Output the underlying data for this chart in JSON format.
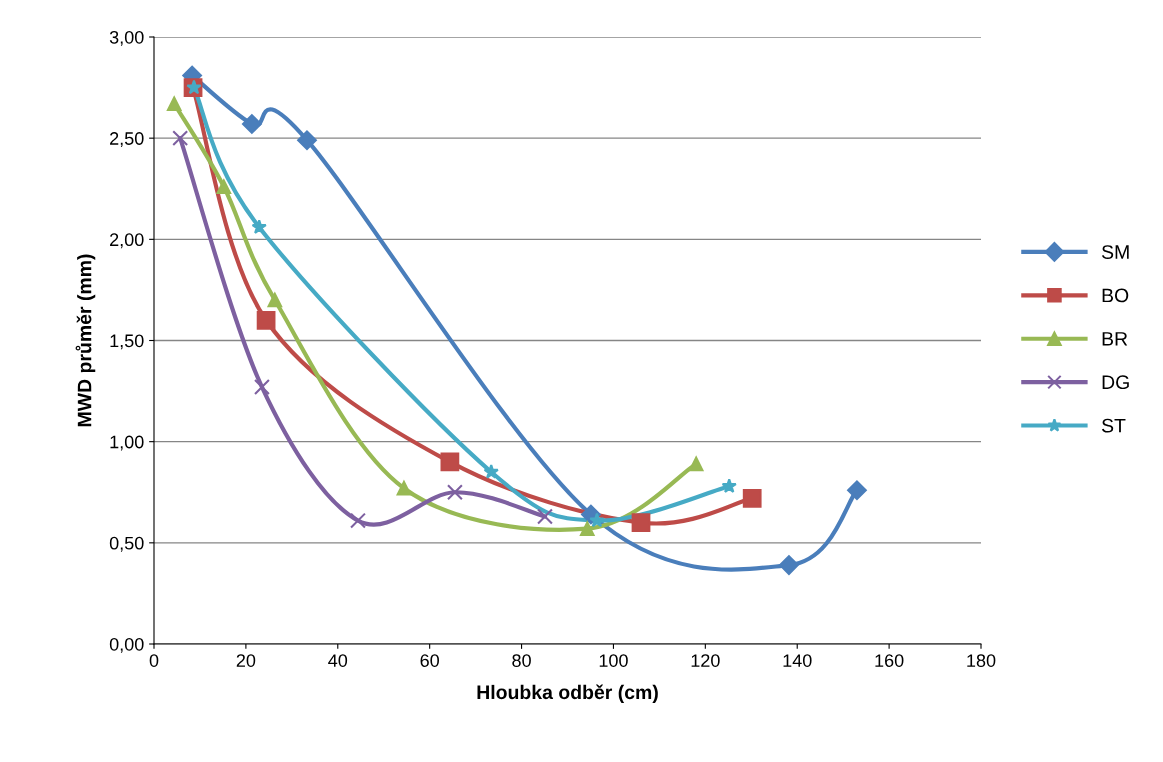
{
  "chart_data": {
    "type": "line",
    "xlabel": "Hloubka odběr (cm)",
    "ylabel": "MWD průměr (mm)",
    "xlim": [
      0,
      180
    ],
    "xticks": [
      0,
      20,
      40,
      60,
      80,
      100,
      120,
      140,
      160,
      180
    ],
    "ylim": [
      0,
      3
    ],
    "yticks": [
      {
        "value": 0,
        "label": "0,00"
      },
      {
        "value": 0.5,
        "label": "0,50"
      },
      {
        "value": 1,
        "label": "1,00"
      },
      {
        "value": 1.5,
        "label": "1,50"
      },
      {
        "value": 2,
        "label": "2,00"
      },
      {
        "value": 2.5,
        "label": "2,50"
      },
      {
        "value": 3,
        "label": "3,00"
      }
    ],
    "grid": "y",
    "legend": "right",
    "line_style": "solid",
    "series": [
      {
        "name": "SM",
        "color": "#4a7ebb",
        "marker": "diamond",
        "x": [
          8.3,
          21.3,
          33.3,
          95.1,
          138.2,
          153
        ],
        "values": [
          2.81,
          2.57,
          2.49,
          0.64,
          0.39,
          0.76
        ]
      },
      {
        "name": "BO",
        "color": "#be4b48",
        "marker": "square",
        "x": [
          8.5,
          24.4,
          64.4,
          106,
          130.2
        ],
        "values": [
          2.75,
          1.6,
          0.9,
          0.6,
          0.72
        ]
      },
      {
        "name": "BR",
        "color": "#98b954",
        "marker": "triangle",
        "x": [
          4.4,
          15.2,
          26.3,
          54.4,
          94.3,
          118
        ],
        "values": [
          2.67,
          2.26,
          1.7,
          0.77,
          0.57,
          0.89
        ]
      },
      {
        "name": "DG",
        "color": "#7d60a0",
        "marker": "cross",
        "x": [
          5.7,
          23.5,
          44.4,
          65.5,
          85.1
        ],
        "values": [
          2.5,
          1.27,
          0.61,
          0.75,
          0.63
        ]
      },
      {
        "name": "ST",
        "color": "#46aac5",
        "marker": "star",
        "x": [
          8.7,
          22.9,
          73.4,
          96.4,
          125.2
        ],
        "values": [
          2.75,
          2.06,
          0.85,
          0.61,
          0.78
        ]
      }
    ]
  }
}
